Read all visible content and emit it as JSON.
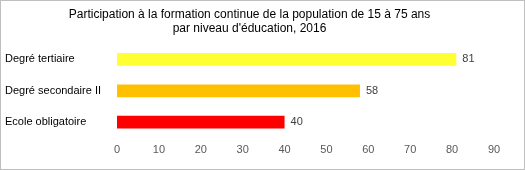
{
  "chart_data": {
    "type": "bar",
    "orientation": "horizontal",
    "title": [
      "Participation à la formation continue de la population de 15 à 75 ans",
      "par niveau d'éducation, 2016"
    ],
    "categories": [
      "Degré tertiaire",
      "Degré secondaire II",
      "Ecole obligatoire"
    ],
    "values": [
      81,
      58,
      40
    ],
    "colors": [
      "#ffff33",
      "#ffc000",
      "#ff0000"
    ],
    "xlim": [
      0,
      90
    ],
    "xticks": [
      0,
      10,
      20,
      30,
      40,
      50,
      60,
      70,
      80,
      90
    ],
    "grid": false,
    "data_labels": true
  }
}
